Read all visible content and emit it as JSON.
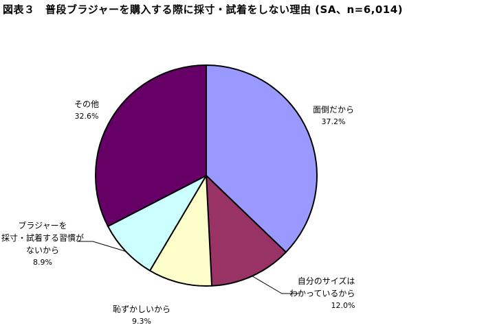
{
  "title": "図表３　普段ブラジャーを購入する際に採寸・試着をしない理由 (SA、n=6,014)",
  "chart_data": {
    "type": "pie",
    "slices": [
      {
        "label": "面倒だから",
        "value": 37.2,
        "value_text": "37.2%",
        "color": "#9999ff"
      },
      {
        "label": "自分のサイズは\nわかっているから",
        "value": 12.0,
        "value_text": "12.0%",
        "color": "#993366"
      },
      {
        "label": "恥ずかしいから",
        "value": 9.3,
        "value_text": "9.3%",
        "color": "#ffffcc"
      },
      {
        "label": "ブラジャーを\n採寸・試着する習慣が\nないから",
        "value": 8.9,
        "value_text": "8.9%",
        "color": "#ccffff"
      },
      {
        "label": "その他",
        "value": 32.6,
        "value_text": "32.6%",
        "color": "#660066"
      }
    ],
    "start_angle": "12 o'clock",
    "direction": "clockwise",
    "legend": "none"
  }
}
